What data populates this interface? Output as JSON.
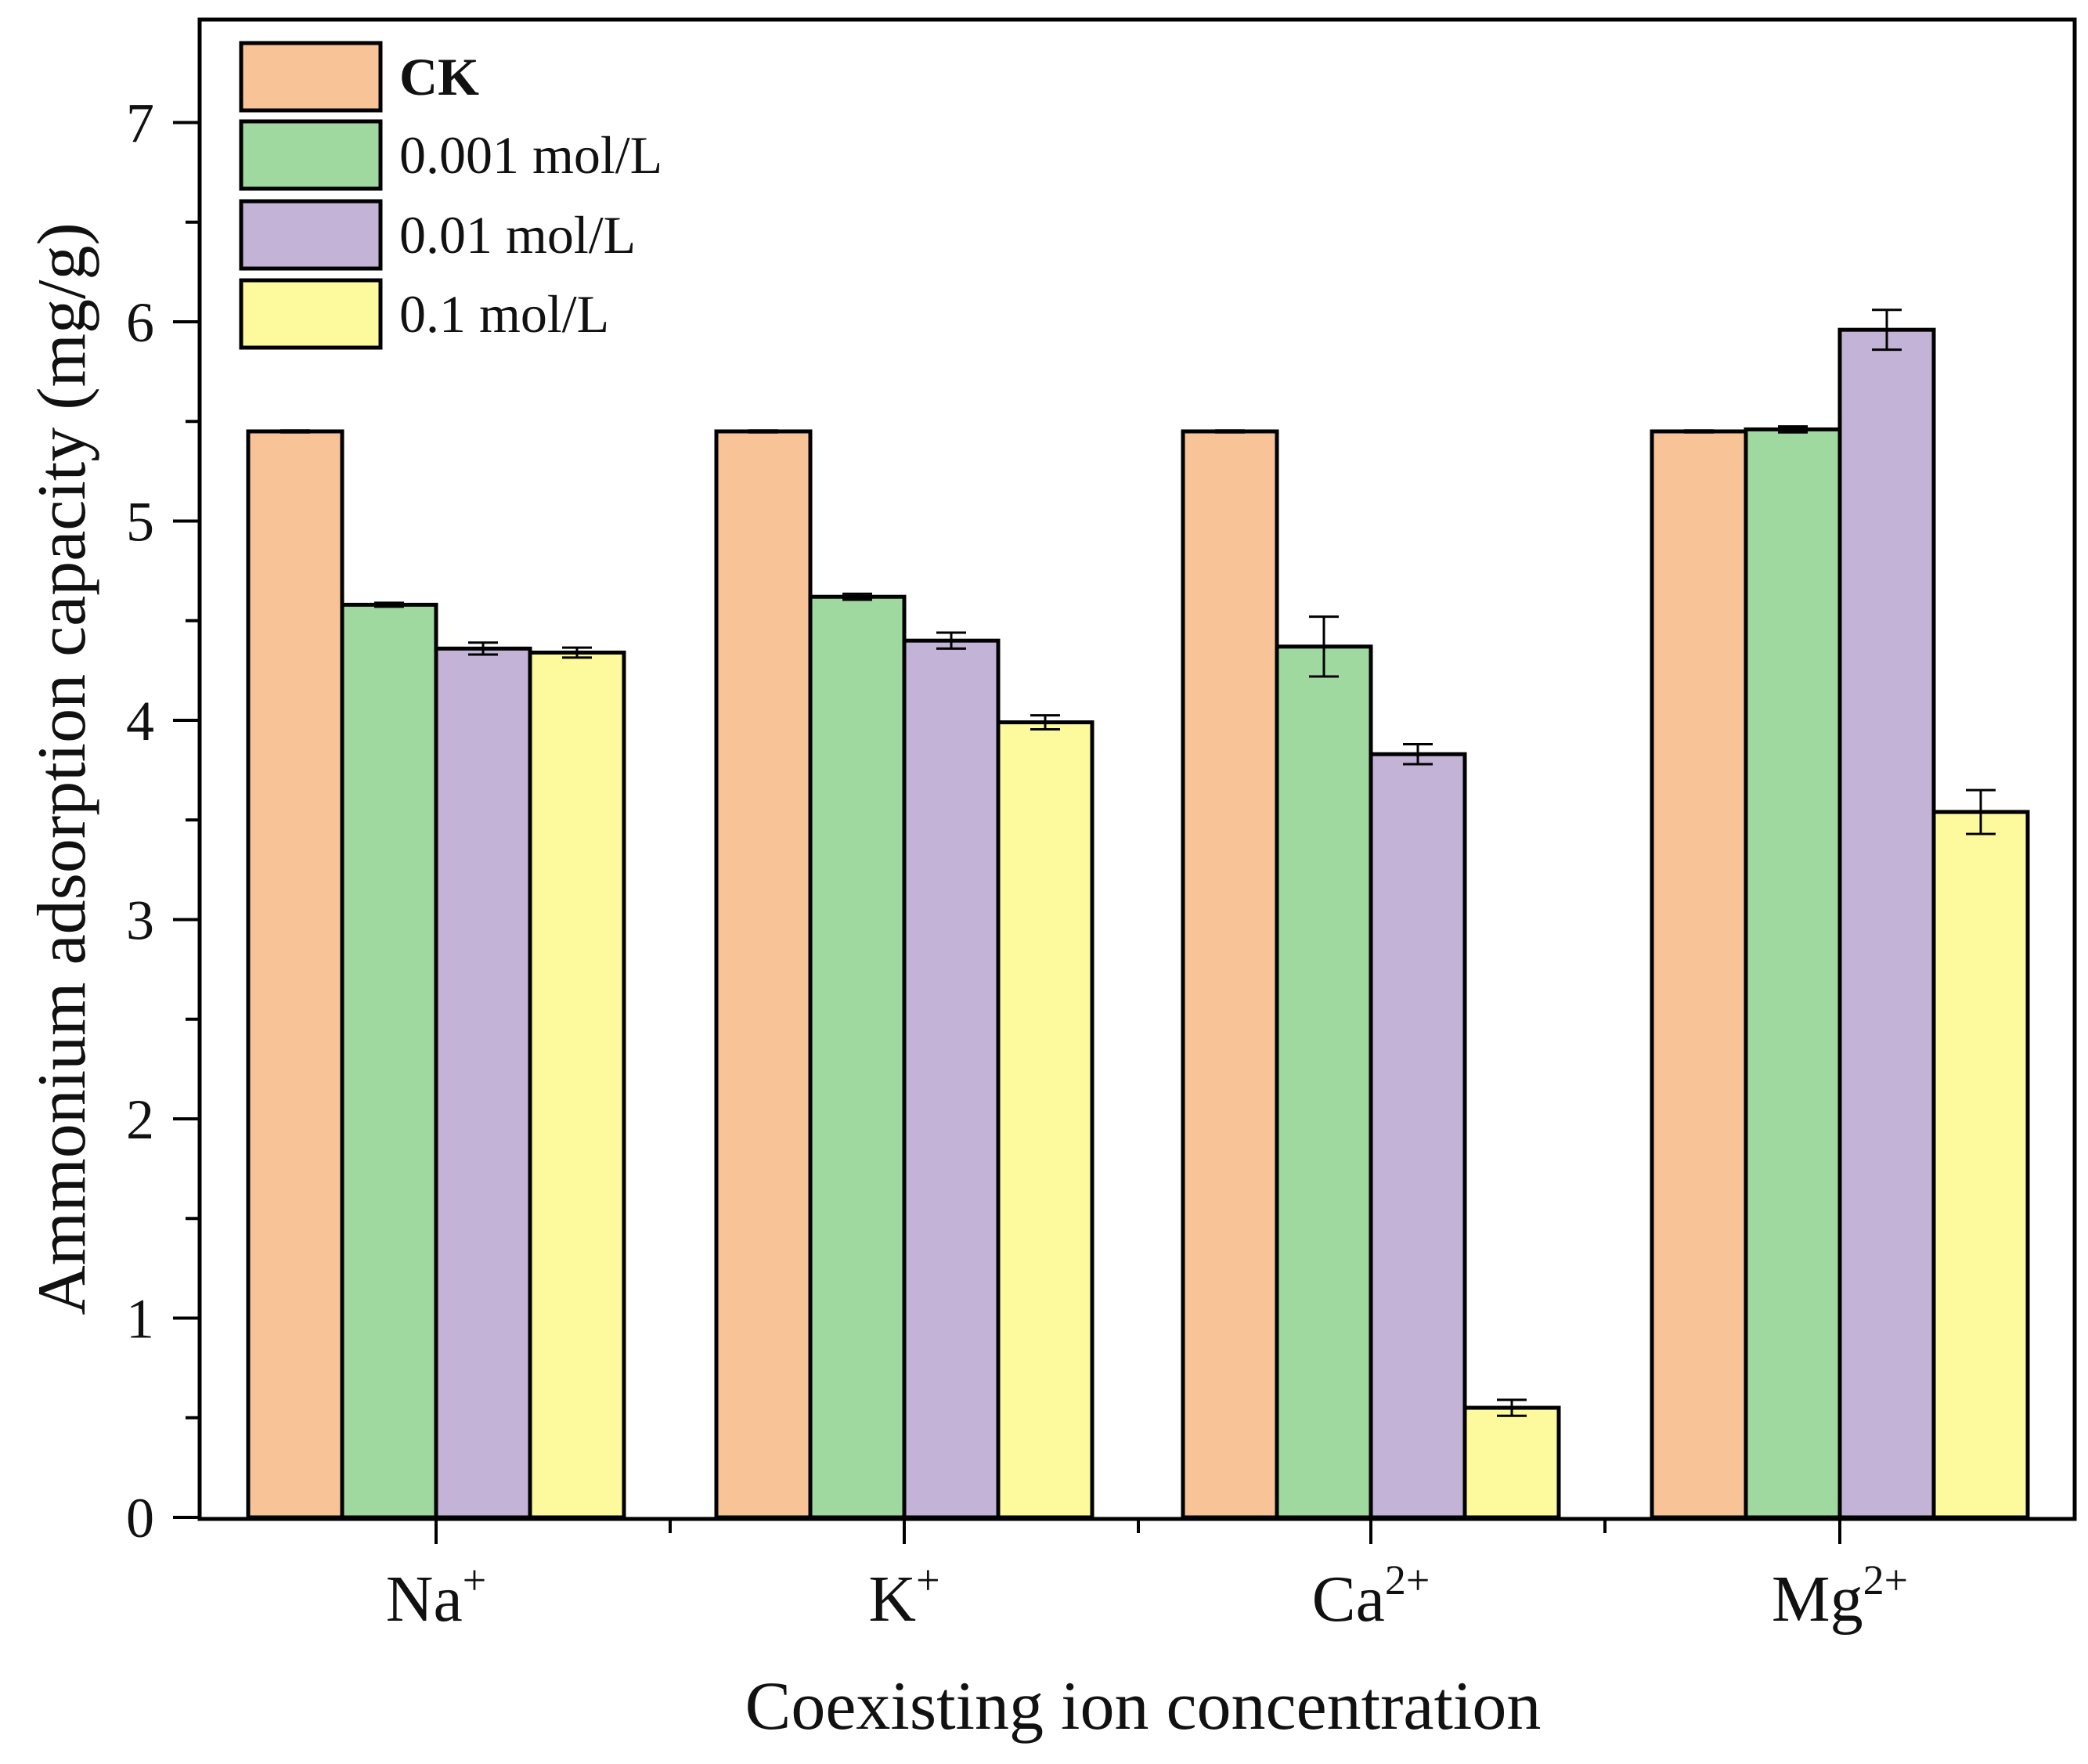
{
  "chart_data": {
    "type": "bar",
    "title": "",
    "xlabel": "Coexisting ion concentration",
    "ylabel": "Ammonium adsorption capacity (mg/g)",
    "ylim": [
      0,
      7.5
    ],
    "yticks": [
      0,
      1,
      2,
      3,
      4,
      5,
      6,
      7
    ],
    "grid": false,
    "legend_position": "top-left",
    "categories": [
      {
        "base": "Na",
        "sup": "+"
      },
      {
        "base": "K",
        "sup": "+"
      },
      {
        "base": "Ca",
        "sup": "2+"
      },
      {
        "base": "Mg",
        "sup": "2+"
      }
    ],
    "series": [
      {
        "name": "CK",
        "color": "#f8c497",
        "values": [
          5.45,
          5.45,
          5.45,
          5.45
        ],
        "errors": [
          0.005,
          0.005,
          0.005,
          0.005
        ]
      },
      {
        "name": "0.001 mol/L",
        "color": "#9fd9a0",
        "values": [
          4.58,
          4.62,
          4.37,
          5.46
        ],
        "errors": [
          0.01,
          0.015,
          0.15,
          0.015
        ]
      },
      {
        "name": "0.01 mol/L",
        "color": "#c2b3d7",
        "values": [
          4.36,
          4.4,
          3.83,
          5.96
        ],
        "errors": [
          0.03,
          0.04,
          0.05,
          0.1
        ]
      },
      {
        "name": "0.1 mol/L",
        "color": "#fdfa9e",
        "values": [
          4.34,
          3.99,
          0.55,
          3.54
        ],
        "errors": [
          0.025,
          0.035,
          0.04,
          0.11
        ]
      }
    ]
  }
}
